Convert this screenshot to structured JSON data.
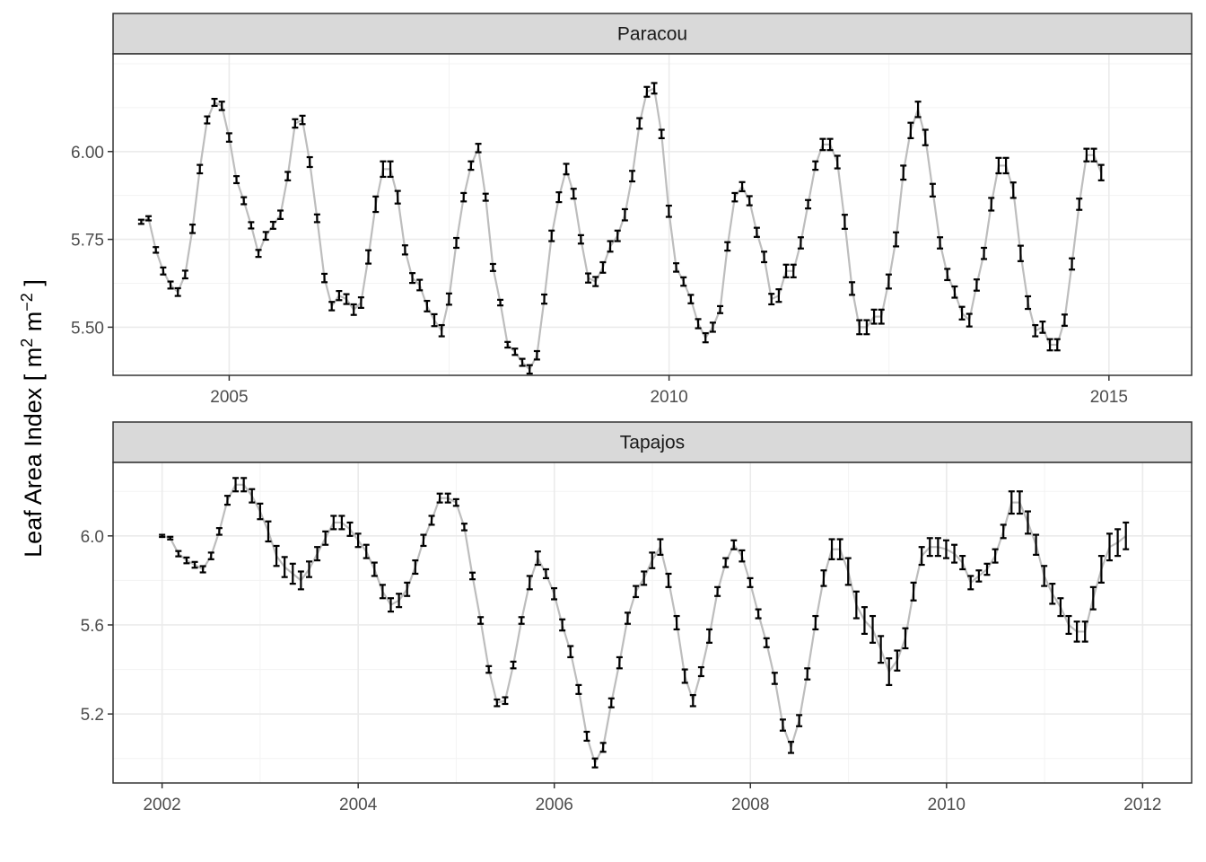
{
  "chart_data": {
    "ylabel": {
      "main": "Leaf Area Index [ m",
      "sup1": "2",
      "mid": " m",
      "sup2": "−2",
      "end": " ]"
    },
    "colors": {
      "line": "#bdbdbd",
      "errorbar": "#000000",
      "strip_fill": "#d9d9d9",
      "grid_major": "#ebebeb",
      "grid_minor": "#f3f3f3",
      "border": "#333333"
    },
    "grid": true,
    "panels": [
      {
        "type": "line",
        "title": "Paracou",
        "xlim": [
          2003.68,
          2015.94
        ],
        "ylim": [
          5.363,
          6.278
        ],
        "xticks": [
          2005,
          2010,
          2015
        ],
        "xtick_labels": [
          "2005",
          "2010",
          "2015"
        ],
        "yticks": [
          5.5,
          5.75,
          6.0
        ],
        "ytick_labels": [
          "5.50",
          "5.75",
          "6.00"
        ],
        "x_start": 2004.0,
        "x_step": 0.0833,
        "values": [
          5.8,
          5.81,
          5.72,
          5.66,
          5.62,
          5.6,
          5.65,
          5.78,
          5.95,
          6.09,
          6.14,
          6.13,
          6.04,
          5.92,
          5.86,
          5.79,
          5.71,
          5.76,
          5.79,
          5.82,
          5.93,
          6.08,
          6.09,
          5.97,
          5.81,
          5.64,
          5.56,
          5.59,
          5.58,
          5.55,
          5.57,
          5.7,
          5.85,
          5.95,
          5.95,
          5.87,
          5.72,
          5.64,
          5.62,
          5.56,
          5.52,
          5.49,
          5.58,
          5.74,
          5.87,
          5.96,
          6.01,
          5.87,
          5.67,
          5.57,
          5.45,
          5.43,
          5.4,
          5.38,
          5.42,
          5.58,
          5.76,
          5.87,
          5.95,
          5.88,
          5.75,
          5.64,
          5.63,
          5.67,
          5.73,
          5.76,
          5.82,
          5.93,
          6.08,
          6.17,
          6.18,
          6.05,
          5.83,
          5.67,
          5.63,
          5.58,
          5.51,
          5.47,
          5.5,
          5.55,
          5.73,
          5.87,
          5.9,
          5.86,
          5.77,
          5.7,
          5.58,
          5.59,
          5.66,
          5.66,
          5.74,
          5.85,
          5.96,
          6.02,
          6.02,
          5.97,
          5.8,
          5.61,
          5.5,
          5.5,
          5.53,
          5.53,
          5.63,
          5.75,
          5.94,
          6.06,
          6.12,
          6.04,
          5.89,
          5.74,
          5.65,
          5.6,
          5.54,
          5.52,
          5.62,
          5.71,
          5.85,
          5.96,
          5.96,
          5.89,
          5.71,
          5.57,
          5.49,
          5.5,
          5.45,
          5.45,
          5.52,
          5.68,
          5.85,
          5.99,
          5.99,
          5.94
        ],
        "errors": [
          0.006,
          0.006,
          0.008,
          0.01,
          0.01,
          0.011,
          0.011,
          0.012,
          0.012,
          0.01,
          0.01,
          0.012,
          0.012,
          0.01,
          0.01,
          0.009,
          0.01,
          0.011,
          0.01,
          0.012,
          0.012,
          0.012,
          0.012,
          0.014,
          0.011,
          0.012,
          0.012,
          0.013,
          0.014,
          0.015,
          0.015,
          0.019,
          0.022,
          0.022,
          0.022,
          0.018,
          0.013,
          0.014,
          0.015,
          0.015,
          0.017,
          0.016,
          0.016,
          0.014,
          0.012,
          0.012,
          0.012,
          0.01,
          0.01,
          0.008,
          0.008,
          0.009,
          0.01,
          0.012,
          0.012,
          0.013,
          0.015,
          0.014,
          0.015,
          0.014,
          0.012,
          0.013,
          0.013,
          0.015,
          0.015,
          0.015,
          0.016,
          0.015,
          0.015,
          0.014,
          0.015,
          0.012,
          0.016,
          0.012,
          0.012,
          0.012,
          0.013,
          0.013,
          0.013,
          0.01,
          0.012,
          0.012,
          0.013,
          0.013,
          0.013,
          0.015,
          0.015,
          0.018,
          0.018,
          0.018,
          0.016,
          0.012,
          0.012,
          0.016,
          0.016,
          0.018,
          0.02,
          0.018,
          0.02,
          0.02,
          0.02,
          0.02,
          0.02,
          0.02,
          0.02,
          0.022,
          0.022,
          0.022,
          0.018,
          0.016,
          0.016,
          0.016,
          0.018,
          0.018,
          0.016,
          0.016,
          0.018,
          0.022,
          0.022,
          0.022,
          0.022,
          0.018,
          0.016,
          0.016,
          0.016,
          0.016,
          0.016,
          0.016,
          0.016,
          0.018,
          0.018,
          0.022
        ]
      },
      {
        "type": "line",
        "title": "Tapajos",
        "xlim": [
          2001.5,
          2012.5
        ],
        "ylim": [
          4.89,
          6.33
        ],
        "xticks": [
          2002,
          2004,
          2006,
          2008,
          2010,
          2012
        ],
        "xtick_labels": [
          "2002",
          "2004",
          "2006",
          "2008",
          "2010",
          "2012"
        ],
        "yticks": [
          5.2,
          5.6,
          6.0
        ],
        "ytick_labels": [
          "5.2",
          "5.6",
          "6.0"
        ],
        "x_start": 2002.0,
        "x_step": 0.0833,
        "values": [
          6.0,
          5.99,
          5.92,
          5.89,
          5.87,
          5.85,
          5.91,
          6.02,
          6.16,
          6.23,
          6.23,
          6.18,
          6.11,
          6.02,
          5.91,
          5.86,
          5.83,
          5.8,
          5.85,
          5.92,
          5.99,
          6.06,
          6.06,
          6.03,
          5.98,
          5.93,
          5.85,
          5.75,
          5.69,
          5.71,
          5.76,
          5.86,
          5.98,
          6.07,
          6.17,
          6.17,
          6.15,
          6.04,
          5.82,
          5.62,
          5.4,
          5.25,
          5.26,
          5.42,
          5.62,
          5.79,
          5.9,
          5.83,
          5.74,
          5.6,
          5.48,
          5.31,
          5.1,
          4.98,
          5.05,
          5.25,
          5.43,
          5.63,
          5.75,
          5.81,
          5.89,
          5.95,
          5.8,
          5.61,
          5.37,
          5.26,
          5.39,
          5.55,
          5.75,
          5.88,
          5.96,
          5.91,
          5.79,
          5.65,
          5.52,
          5.36,
          5.15,
          5.05,
          5.17,
          5.38,
          5.61,
          5.81,
          5.94,
          5.94,
          5.84,
          5.69,
          5.62,
          5.58,
          5.49,
          5.39,
          5.44,
          5.54,
          5.75,
          5.91,
          5.95,
          5.95,
          5.94,
          5.92,
          5.88,
          5.79,
          5.82,
          5.85,
          5.91,
          6.02,
          6.15,
          6.15,
          6.06,
          5.96,
          5.82,
          5.74,
          5.68,
          5.6,
          5.57,
          5.57,
          5.72,
          5.85,
          5.95,
          5.97,
          6.0
        ],
        "errors": [
          0.005,
          0.006,
          0.012,
          0.013,
          0.013,
          0.014,
          0.015,
          0.015,
          0.02,
          0.03,
          0.03,
          0.03,
          0.035,
          0.045,
          0.045,
          0.045,
          0.045,
          0.04,
          0.035,
          0.03,
          0.03,
          0.03,
          0.03,
          0.03,
          0.03,
          0.03,
          0.03,
          0.03,
          0.03,
          0.03,
          0.03,
          0.03,
          0.025,
          0.02,
          0.02,
          0.02,
          0.015,
          0.015,
          0.015,
          0.015,
          0.015,
          0.015,
          0.015,
          0.015,
          0.015,
          0.03,
          0.03,
          0.02,
          0.025,
          0.025,
          0.025,
          0.02,
          0.02,
          0.02,
          0.02,
          0.02,
          0.025,
          0.025,
          0.025,
          0.03,
          0.035,
          0.035,
          0.03,
          0.03,
          0.03,
          0.025,
          0.02,
          0.03,
          0.02,
          0.02,
          0.02,
          0.025,
          0.02,
          0.02,
          0.02,
          0.025,
          0.025,
          0.025,
          0.025,
          0.025,
          0.03,
          0.035,
          0.045,
          0.045,
          0.06,
          0.06,
          0.06,
          0.06,
          0.06,
          0.06,
          0.045,
          0.045,
          0.04,
          0.04,
          0.04,
          0.04,
          0.04,
          0.04,
          0.03,
          0.03,
          0.025,
          0.025,
          0.03,
          0.03,
          0.05,
          0.05,
          0.05,
          0.045,
          0.045,
          0.045,
          0.04,
          0.04,
          0.045,
          0.045,
          0.05,
          0.06,
          0.06,
          0.06,
          0.06
        ]
      }
    ]
  }
}
